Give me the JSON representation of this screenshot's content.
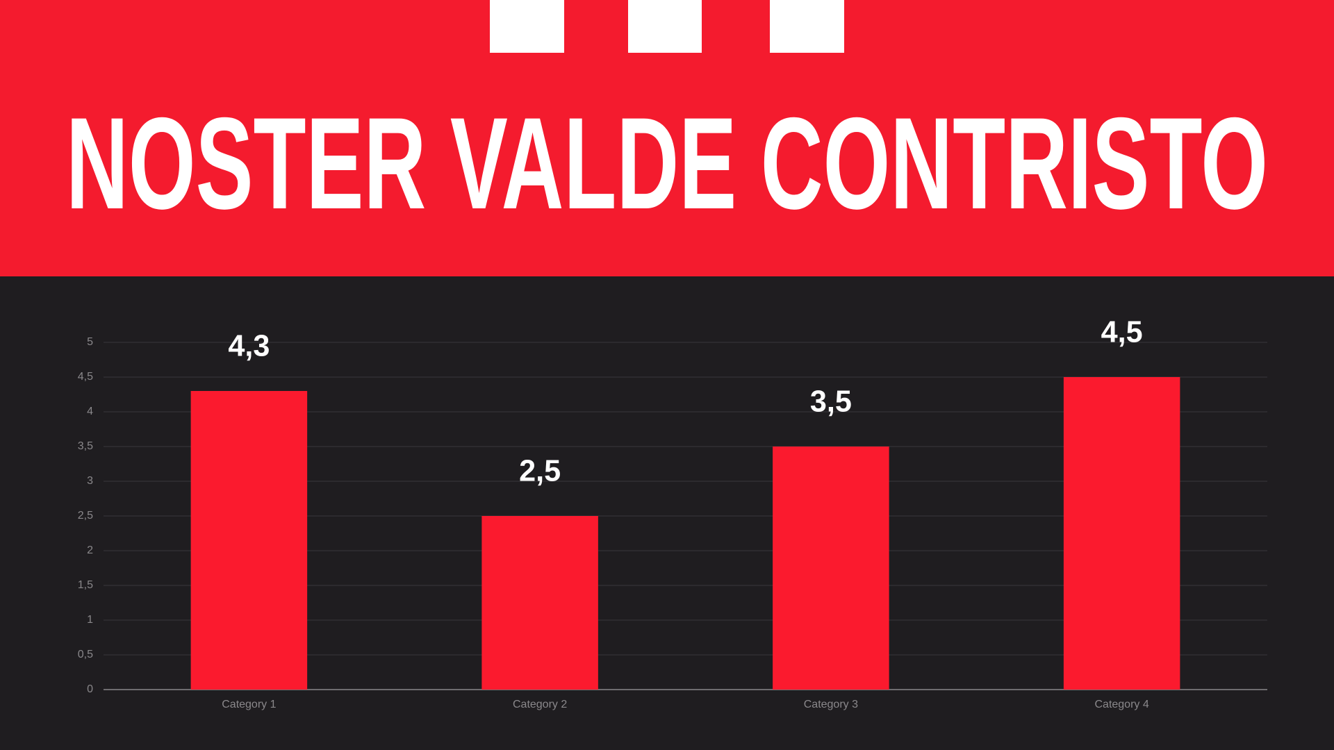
{
  "chart_data": {
    "type": "bar",
    "title": "NOSTER VALDE CONTRISTO",
    "categories": [
      "Category 1",
      "Category 2",
      "Category 3",
      "Category 4"
    ],
    "values": [
      4.3,
      2.5,
      3.5,
      4.5
    ],
    "value_labels": [
      "4,3",
      "2,5",
      "3,5",
      "4,5"
    ],
    "color": "#fb1a2e",
    "ylim": [
      0,
      5
    ],
    "yticks": [
      0,
      {
        "value": 0.5,
        "label": "0,5"
      },
      1,
      {
        "value": 1.5,
        "label": "1,5"
      },
      2,
      {
        "value": 2.5,
        "label": "2,5"
      },
      3,
      {
        "value": 3.5,
        "label": "3,5"
      },
      4,
      {
        "value": 4.5,
        "label": "4,5"
      },
      5
    ],
    "grid": true
  }
}
